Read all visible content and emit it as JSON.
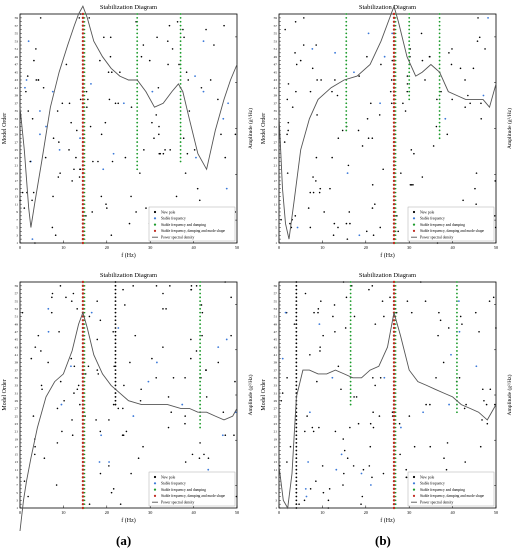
{
  "figure": {
    "captions": [
      "(a)",
      "(b)"
    ]
  },
  "chart_data": [
    {
      "panel": "top-left",
      "type": "line",
      "title": "Stabilization Diagram",
      "xlabel": "f (Hz)",
      "ylabel": "Model Order",
      "ylabel_right": "Amplitude (g²/Hz)",
      "xlim": [
        0,
        50
      ],
      "xticks": [
        0,
        10,
        20,
        30,
        40,
        50
      ],
      "ylim": [
        1,
        60
      ],
      "legend_position": "lower right",
      "legend": [
        "New pole",
        "Stable frequency",
        "Stable frequency and damping",
        "Stable frequency, damping and mode shape",
        "Power spectral density"
      ],
      "colors": {
        "new": "#000000",
        "freq": "#3a78d8",
        "damp": "#1a9a2a",
        "mode": "#c0281e",
        "psd": "#555555"
      },
      "stable_modes": [
        {
          "f": 14.5,
          "class": "mode",
          "from": 1,
          "to": 60
        },
        {
          "f": 27.0,
          "class": "damp",
          "from": 20,
          "to": 60
        },
        {
          "f": 37.0,
          "class": "damp",
          "from": 22,
          "to": 60
        }
      ],
      "scatter_seed": 11,
      "psd": {
        "x": [
          0,
          1,
          2,
          2.5,
          3.5,
          5,
          7,
          9,
          11,
          12.5,
          13.5,
          14.5,
          15.5,
          17,
          19,
          21,
          23,
          25,
          27,
          29,
          31,
          33,
          35,
          36.5,
          37.5,
          39,
          41,
          43,
          45,
          47,
          48.5,
          50
        ],
        "y": [
          36,
          25,
          10,
          5,
          12,
          22,
          36,
          45,
          52,
          57,
          60,
          62,
          59,
          53,
          49,
          46,
          44,
          43,
          43,
          40,
          36,
          37,
          40,
          42,
          40,
          33,
          24,
          20,
          30,
          38,
          43,
          47
        ]
      }
    },
    {
      "panel": "top-right",
      "type": "line",
      "title": "Stabilization Diagram",
      "xlabel": "f (Hz)",
      "ylabel": "Model Order",
      "ylabel_right": "Amplitude (g²/Hz)",
      "xlim": [
        0,
        50
      ],
      "xticks": [
        0,
        10,
        20,
        30,
        40,
        50
      ],
      "ylim": [
        1,
        60
      ],
      "legend_position": "lower right",
      "legend": [
        "New pole",
        "Stable frequency",
        "Stable frequency and damping",
        "Stable frequency, damping and mode shape",
        "Power spectral density"
      ],
      "colors": {
        "new": "#000000",
        "freq": "#3a78d8",
        "damp": "#1a9a2a",
        "mode": "#c0281e",
        "psd": "#555555"
      },
      "stable_modes": [
        {
          "f": 15.5,
          "class": "damp",
          "from": 30,
          "to": 60
        },
        {
          "f": 26.5,
          "class": "mode",
          "from": 1,
          "to": 60
        },
        {
          "f": 30.0,
          "class": "damp",
          "from": 38,
          "to": 60
        },
        {
          "f": 37.0,
          "class": "damp",
          "from": 28,
          "to": 60
        }
      ],
      "scatter_seed": 23,
      "psd": {
        "x": [
          0,
          0.8,
          1.5,
          2.3,
          3.5,
          5,
          7,
          9,
          12,
          15,
          18,
          21,
          23.5,
          25.5,
          26.5,
          27.5,
          29.5,
          31.5,
          33,
          35,
          37,
          39,
          41,
          43,
          45,
          47,
          48.5,
          50
        ],
        "y": [
          34,
          15,
          6,
          2,
          12,
          25,
          33,
          38,
          41,
          43,
          44,
          47,
          53,
          59,
          62,
          58,
          49,
          44,
          45,
          47,
          45,
          40,
          39,
          38,
          38,
          38,
          36,
          42
        ]
      }
    },
    {
      "panel": "bottom-left",
      "type": "line",
      "title": "Stabilization Diagram",
      "xlabel": "f (Hz)",
      "ylabel": "Model Order",
      "ylabel_right": "Amplitude (g²/Hz)",
      "xlim": [
        0,
        50
      ],
      "xticks": [
        0,
        10,
        20,
        30,
        40,
        50
      ],
      "ylim": [
        1,
        60
      ],
      "legend_position": "lower right",
      "legend": [
        "New pole",
        "Stable frequency",
        "Stable frequency and damping",
        "Stable frequency, damping and mode shape",
        "Power spectral density"
      ],
      "colors": {
        "new": "#000000",
        "freq": "#3a78d8",
        "damp": "#1a9a2a",
        "mode": "#c0281e",
        "psd": "#555555"
      },
      "stable_modes": [
        {
          "f": 14.5,
          "class": "mode",
          "from": 1,
          "to": 60
        },
        {
          "f": 22.0,
          "class": "new",
          "from": 28,
          "to": 60
        },
        {
          "f": 41.5,
          "class": "damp",
          "from": 22,
          "to": 60
        }
      ],
      "scatter_seed": 37,
      "psd": {
        "x": [
          0,
          0.8,
          1.5,
          2.5,
          4,
          6,
          8,
          10,
          12,
          13.5,
          14.5,
          15.5,
          17,
          19,
          21,
          23,
          25,
          28,
          31,
          34,
          37,
          39,
          41,
          43,
          45,
          47,
          49,
          50
        ],
        "y": [
          -5,
          3,
          8,
          14,
          22,
          30,
          34,
          36,
          42,
          49,
          52,
          48,
          41,
          36,
          33,
          31,
          29,
          28,
          28,
          28,
          27,
          27,
          26,
          26,
          25,
          24,
          25,
          27
        ]
      }
    },
    {
      "panel": "bottom-right",
      "type": "line",
      "title": "Stabilization Diagram",
      "xlabel": "f (Hz)",
      "ylabel": "Model Order",
      "ylabel_right": "Amplitude (g²/Hz)",
      "xlim": [
        0,
        50
      ],
      "xticks": [
        0,
        10,
        20,
        30,
        40,
        50
      ],
      "ylim": [
        1,
        60
      ],
      "legend_position": "lower right",
      "legend": [
        "New pole",
        "Stable frequency",
        "Stable frequency and damping",
        "Stable frequency, damping and mode shape",
        "Power spectral density"
      ],
      "colors": {
        "new": "#000000",
        "freq": "#3a78d8",
        "damp": "#1a9a2a",
        "mode": "#c0281e",
        "psd": "#555555"
      },
      "stable_modes": [
        {
          "f": 4.0,
          "class": "new",
          "from": 1,
          "to": 60
        },
        {
          "f": 16.5,
          "class": "damp",
          "from": 28,
          "to": 60
        },
        {
          "f": 26.5,
          "class": "mode",
          "from": 1,
          "to": 60
        },
        {
          "f": 41.0,
          "class": "damp",
          "from": 26,
          "to": 60
        }
      ],
      "scatter_seed": 51,
      "psd": {
        "x": [
          0,
          1,
          2,
          3,
          4,
          5.5,
          7,
          9,
          11,
          13,
          15,
          17,
          19,
          21,
          23,
          25,
          26.5,
          28,
          30,
          32,
          34,
          36,
          38,
          40,
          42,
          44,
          46,
          48,
          50
        ],
        "y": [
          12,
          3,
          1,
          10,
          30,
          37,
          37,
          36,
          36,
          37,
          36,
          35,
          35,
          37,
          38,
          43,
          52,
          46,
          37,
          34,
          33,
          32,
          31,
          30,
          28,
          27,
          26,
          24,
          28
        ]
      }
    }
  ]
}
